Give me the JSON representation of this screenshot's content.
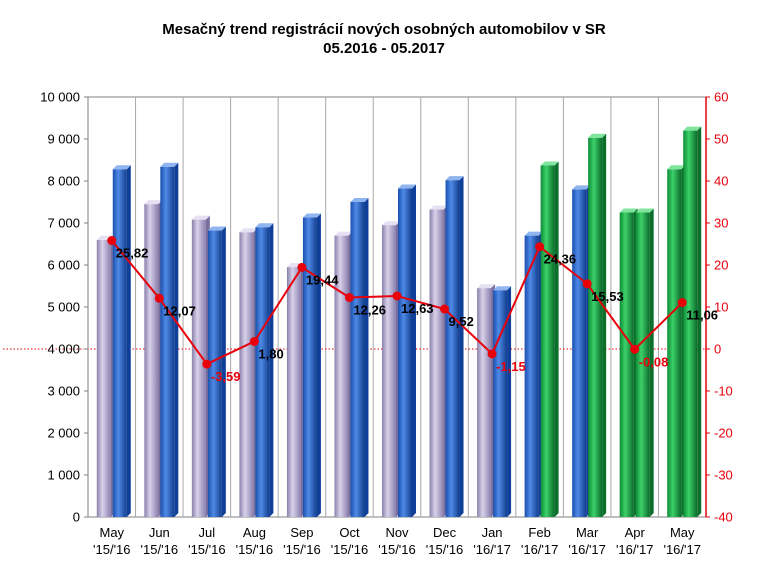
{
  "chart_data": {
    "type": "bar",
    "title": "Mesačný trend registrácií nových osobných automobilov v SR",
    "subtitle": "05.2016 - 05.2017",
    "categories": [
      [
        "May",
        "'15/'16"
      ],
      [
        "Jun",
        "'15/'16"
      ],
      [
        "Jul",
        "'15/'16"
      ],
      [
        "Aug",
        "'15/'16"
      ],
      [
        "Sep",
        "'15/'16"
      ],
      [
        "Oct",
        "'15/'16"
      ],
      [
        "Nov",
        "'15/'16"
      ],
      [
        "Dec",
        "'15/'16"
      ],
      [
        "Jan",
        "'16/'17"
      ],
      [
        "Feb",
        "'16/'17"
      ],
      [
        "Mar",
        "'16/'17"
      ],
      [
        "Apr",
        "'16/'17"
      ],
      [
        "May",
        "'16/'17"
      ]
    ],
    "series": [
      {
        "axis": "left",
        "values": [
          6600,
          7450,
          7080,
          6780,
          5950,
          6700,
          6950,
          7320,
          5450,
          6700,
          7800,
          7250,
          8280
        ]
      },
      {
        "axis": "left",
        "values": [
          8280,
          8340,
          6820,
          6900,
          7130,
          7500,
          7820,
          8020,
          5400,
          8370,
          9030,
          7250,
          9200
        ]
      },
      {
        "axis": "right",
        "type": "line",
        "values": [
          25.82,
          12.07,
          -3.59,
          1.8,
          19.44,
          12.26,
          12.63,
          9.52,
          -1.15,
          24.36,
          15.53,
          -0.08,
          11.06
        ],
        "labels": [
          "25,82",
          "12,07",
          "-3,59",
          "1,80",
          "19,44",
          "12,26",
          "12,63",
          "9,52",
          "-1,15",
          "24,36",
          "15,53",
          "-0,08",
          "11,06"
        ],
        "label_colors": [
          "#000000",
          "#000000",
          "#e8000b",
          "#000000",
          "#000000",
          "#000000",
          "#000000",
          "#000000",
          "#e8000b",
          "#000000",
          "#000000",
          "#e8000b",
          "#000000"
        ]
      }
    ],
    "y_left": {
      "min": 0,
      "max": 10000,
      "step": 1000,
      "tick_labels": [
        "0",
        "1 000",
        "2 000",
        "3 000",
        "4 000",
        "5 000",
        "6 000",
        "7 000",
        "8 000",
        "9 000",
        "10 000"
      ]
    },
    "y_right": {
      "min": -40,
      "max": 60,
      "step": 10,
      "tick_labels": [
        "-40",
        "-30",
        "-20",
        "-10",
        "0",
        "10",
        "20",
        "30",
        "40",
        "50",
        "60"
      ]
    },
    "grid": "vertical",
    "colors": {
      "bar_prev": "#b8b0d0",
      "bar_prev_dark": "#7a6f9c",
      "bar_curr": "#2f6fd0",
      "bar_curr_dark": "#0f3f99",
      "bar_green": "#19b24a",
      "bar_green_dark": "#0b6e2b",
      "line": "#e8000b",
      "right_axis_text": "#e8000b",
      "grid": "#a8a8a8"
    }
  }
}
